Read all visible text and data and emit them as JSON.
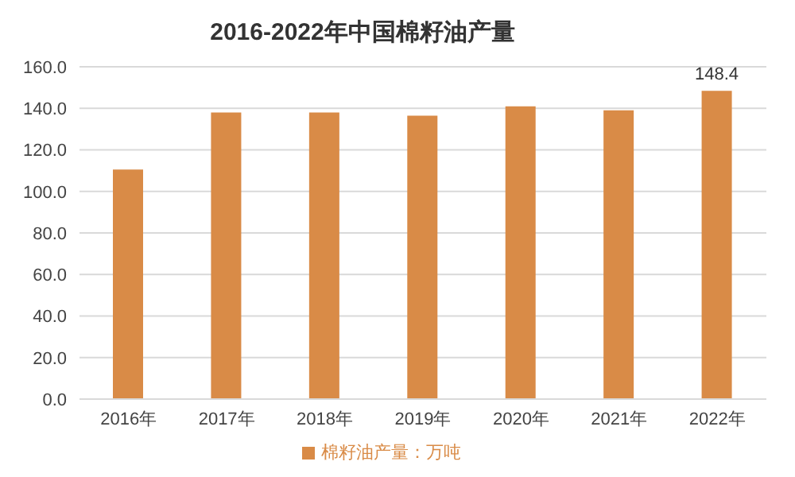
{
  "chart_data": {
    "type": "bar",
    "title": "2016-2022年中国棉籽油产量",
    "categories": [
      "2016年",
      "2017年",
      "2018年",
      "2019年",
      "2020年",
      "2021年",
      "2022年"
    ],
    "series": [
      {
        "name": "棉籽油产量：万吨",
        "color": "#d98b47",
        "values": [
          110.5,
          138,
          138,
          136.5,
          141,
          139,
          148.4
        ],
        "value_labels": [
          null,
          null,
          null,
          null,
          null,
          null,
          "148.4"
        ]
      }
    ],
    "ylim": [
      0,
      160
    ],
    "yticks": [
      {
        "value": 0,
        "label": "0.0"
      },
      {
        "value": 20,
        "label": "20.0"
      },
      {
        "value": 40,
        "label": "40.0"
      },
      {
        "value": 60,
        "label": "60.0"
      },
      {
        "value": 80,
        "label": "80.0"
      },
      {
        "value": 100,
        "label": "100.0"
      },
      {
        "value": 120,
        "label": "120.0"
      },
      {
        "value": 140,
        "label": "140.0"
      },
      {
        "value": 160,
        "label": "160.0"
      }
    ],
    "grid": "y",
    "legend": "bottom"
  }
}
